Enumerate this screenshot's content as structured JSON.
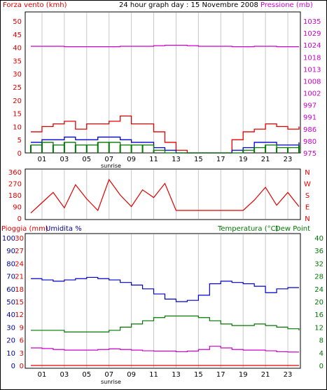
{
  "colors": {
    "red": "#e00000",
    "magenta": "#cc00cc",
    "blue": "#0000cc",
    "darkblue": "#000099",
    "green": "#007700",
    "grid": "#c8c8c8",
    "black": "#000000"
  },
  "header": {
    "left_title": "Forza vento (kmh)",
    "center_title": "24 hour graph day : 15 Novembre 2008",
    "right_title": "Pressione (mb)"
  },
  "x_ticks": [
    "01",
    "03",
    "05",
    "07",
    "09",
    "11",
    "13",
    "15",
    "17",
    "19",
    "21",
    "23"
  ],
  "sunrise_label": "sunrise",
  "chart_data": [
    {
      "type": "line",
      "name": "wind-speed-pressure",
      "ylabel_left": "Forza vento (kmh)",
      "ylabel_right": "Pressione (mb)",
      "ylim_left": [
        0,
        50
      ],
      "ylim_right": [
        975,
        1035
      ],
      "left_ticks": [
        "0",
        "5",
        "10",
        "15",
        "20",
        "25",
        "30",
        "35",
        "40",
        "45",
        "50"
      ],
      "right_ticks": [
        "975",
        "980",
        "986",
        "991",
        "997",
        "1002",
        "1008",
        "1013",
        "1018",
        "1024",
        "1029",
        "1035"
      ],
      "x": [
        0,
        1,
        2,
        3,
        4,
        5,
        6,
        7,
        8,
        9,
        10,
        11,
        12,
        13,
        14,
        15,
        16,
        17,
        18,
        19,
        20,
        21,
        22,
        23,
        24
      ],
      "series": [
        {
          "axis": "right",
          "color": "magenta",
          "values": [
            1023.5,
            1023.5,
            1023.5,
            1023.3,
            1023.3,
            1023.3,
            1023.3,
            1023.3,
            1023.5,
            1023.5,
            1023.5,
            1023.8,
            1024.0,
            1024.0,
            1023.8,
            1023.5,
            1023.5,
            1023.5,
            1023.3,
            1023.3,
            1023.5,
            1023.5,
            1023.3,
            1023.3,
            1023.3
          ]
        },
        {
          "axis": "left",
          "color": "red",
          "values": [
            8,
            10,
            11,
            12,
            9,
            11,
            11,
            12,
            14,
            11,
            11,
            8,
            4,
            1,
            0,
            0,
            0,
            0,
            5,
            8,
            9,
            11,
            10,
            9,
            10
          ]
        },
        {
          "axis": "left",
          "color": "blue",
          "values": [
            4,
            5,
            5,
            6,
            5,
            5,
            6,
            6,
            5,
            4,
            4,
            2,
            1,
            0,
            0,
            0,
            0,
            0,
            1,
            2,
            4,
            4,
            3,
            3,
            4
          ]
        },
        {
          "axis": "left",
          "color": "green",
          "values": [
            3,
            4,
            3,
            4,
            3,
            3,
            4,
            4,
            3,
            3,
            3,
            1,
            0,
            0,
            0,
            0,
            0,
            0,
            0,
            1,
            2,
            3,
            2,
            2,
            3
          ]
        }
      ]
    },
    {
      "type": "line",
      "name": "wind-direction",
      "ylim_left": [
        0,
        360
      ],
      "left_ticks": [
        "0",
        "90",
        "180",
        "270",
        "360"
      ],
      "right_ticks": [
        "N",
        "E",
        "S",
        "W",
        "N"
      ],
      "x": [
        0,
        1,
        2,
        3,
        4,
        5,
        6,
        7,
        8,
        9,
        10,
        11,
        12,
        13,
        14,
        15,
        16,
        17,
        18,
        19,
        20,
        21,
        22,
        23,
        24
      ],
      "series": [
        {
          "color": "red",
          "values": [
            40,
            120,
            200,
            80,
            260,
            150,
            60,
            300,
            180,
            90,
            220,
            160,
            270,
            60,
            60,
            60,
            60,
            60,
            60,
            60,
            140,
            240,
            100,
            200,
            90
          ]
        }
      ]
    },
    {
      "type": "line",
      "name": "rain-humidity-temperature",
      "labels": {
        "rain": "Pioggia (mm)",
        "humidity": "Umidita %",
        "temperature": "Temperatura (°C)",
        "dew": "Dew Point"
      },
      "humidity_ticks": [
        "0",
        "10",
        "20",
        "30",
        "40",
        "50",
        "60",
        "70",
        "80",
        "90",
        "100"
      ],
      "rain_ticks": [
        "0",
        "3",
        "6",
        "9",
        "12",
        "15",
        "18",
        "21",
        "24",
        "27",
        "30"
      ],
      "temp_ticks": [
        "0",
        "4",
        "8",
        "12",
        "16",
        "20",
        "24",
        "28",
        "32",
        "36",
        "40"
      ],
      "ylim_humidity": [
        0,
        100
      ],
      "ylim_temperature": [
        0,
        40
      ],
      "x": [
        0,
        1,
        2,
        3,
        4,
        5,
        6,
        7,
        8,
        9,
        10,
        11,
        12,
        13,
        14,
        15,
        16,
        17,
        18,
        19,
        20,
        21,
        22,
        23,
        24
      ],
      "series": [
        {
          "name": "Umidita %",
          "color": "blue",
          "values": [
            68,
            67,
            66,
            67,
            68,
            69,
            68,
            67,
            65,
            63,
            60,
            56,
            52,
            50,
            51,
            55,
            64,
            66,
            65,
            64,
            62,
            57,
            60,
            61,
            61
          ]
        },
        {
          "name": "Temperatura (°C)",
          "color": "green",
          "values": [
            11,
            11,
            11,
            10.5,
            10.5,
            10.5,
            10.5,
            11,
            12,
            13,
            14,
            15,
            15.5,
            15.5,
            15.5,
            15,
            14,
            13,
            12.5,
            12.5,
            13,
            12.5,
            12,
            11.5,
            11
          ]
        },
        {
          "name": "Dew Point",
          "color": "magenta",
          "values": [
            5.5,
            5.3,
            5,
            4.8,
            4.8,
            4.8,
            5,
            5.2,
            5,
            4.8,
            4.6,
            4.5,
            4.5,
            4.3,
            4.5,
            5,
            6,
            5.5,
            5,
            4.8,
            4.8,
            4.6,
            4.3,
            4.2,
            4.2
          ]
        },
        {
          "name": "Pioggia (mm)",
          "color": "red",
          "values": [
            0,
            0,
            0,
            0,
            0,
            0,
            0,
            0,
            0,
            0,
            0,
            0,
            0,
            0,
            0,
            0,
            0,
            0,
            0,
            0,
            0,
            0,
            0,
            0,
            0
          ]
        }
      ]
    }
  ]
}
